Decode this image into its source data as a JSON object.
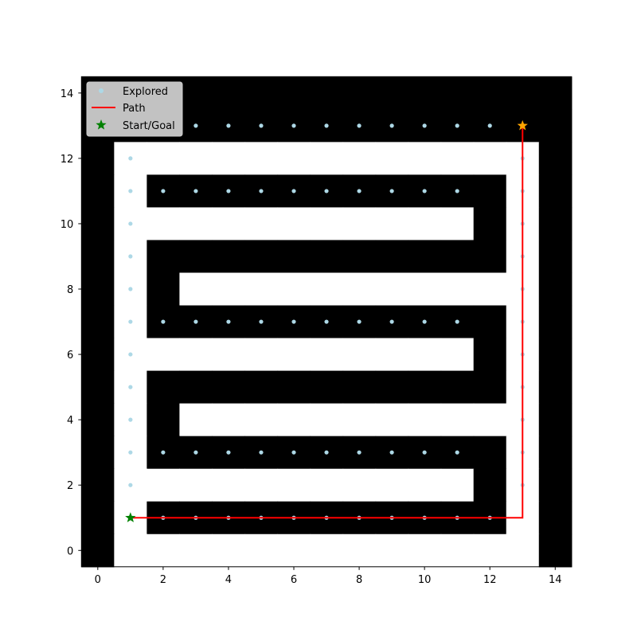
{
  "chart_data": {
    "type": "scatter",
    "title": "",
    "xlabel": "",
    "ylabel": "",
    "xlim": [
      -0.5,
      14.5
    ],
    "ylim": [
      -0.5,
      14.5
    ],
    "x_ticks": [
      0,
      2,
      4,
      6,
      8,
      10,
      12,
      14
    ],
    "y_ticks": [
      0,
      2,
      4,
      6,
      8,
      10,
      12,
      14
    ],
    "grid": false,
    "legend_position": "top-left",
    "legend": {
      "explored_label": "Explored",
      "path_label": "Path",
      "startgoal_label": "Start/Goal"
    },
    "colors": {
      "wall": "#000000",
      "free": "#ffffff",
      "explored": "#add8e6",
      "path": "#ff0000",
      "start": "#008000",
      "goal": "#ffa500"
    },
    "maze_rows_top_to_bottom": [
      "###############",
      "###############",
      "#.............#",
      "#.###########.#",
      "#...........#.#",
      "#.###########.#",
      "#.#...........#",
      "#.###########.#",
      "#...........#.#",
      "#.###########.#",
      "#.#...........#",
      "#.###########.#",
      "#...........#.#",
      "#.###########.#",
      "#.............#"
    ],
    "explored": [
      [
        1,
        1
      ],
      [
        2,
        1
      ],
      [
        3,
        1
      ],
      [
        4,
        1
      ],
      [
        5,
        1
      ],
      [
        6,
        1
      ],
      [
        7,
        1
      ],
      [
        8,
        1
      ],
      [
        9,
        1
      ],
      [
        10,
        1
      ],
      [
        11,
        1
      ],
      [
        12,
        1
      ],
      [
        1,
        2
      ],
      [
        1,
        3
      ],
      [
        2,
        3
      ],
      [
        3,
        3
      ],
      [
        4,
        3
      ],
      [
        5,
        3
      ],
      [
        6,
        3
      ],
      [
        7,
        3
      ],
      [
        8,
        3
      ],
      [
        9,
        3
      ],
      [
        10,
        3
      ],
      [
        11,
        3
      ],
      [
        1,
        4
      ],
      [
        1,
        5
      ],
      [
        1,
        6
      ],
      [
        1,
        7
      ],
      [
        2,
        7
      ],
      [
        3,
        7
      ],
      [
        4,
        7
      ],
      [
        5,
        7
      ],
      [
        6,
        7
      ],
      [
        7,
        7
      ],
      [
        8,
        7
      ],
      [
        9,
        7
      ],
      [
        10,
        7
      ],
      [
        11,
        7
      ],
      [
        1,
        8
      ],
      [
        1,
        9
      ],
      [
        1,
        10
      ],
      [
        1,
        11
      ],
      [
        2,
        11
      ],
      [
        3,
        11
      ],
      [
        4,
        11
      ],
      [
        5,
        11
      ],
      [
        6,
        11
      ],
      [
        7,
        11
      ],
      [
        8,
        11
      ],
      [
        9,
        11
      ],
      [
        10,
        11
      ],
      [
        11,
        11
      ],
      [
        1,
        12
      ],
      [
        1,
        13
      ],
      [
        2,
        13
      ],
      [
        3,
        13
      ],
      [
        4,
        13
      ],
      [
        5,
        13
      ],
      [
        6,
        13
      ],
      [
        7,
        13
      ],
      [
        8,
        13
      ],
      [
        9,
        13
      ],
      [
        10,
        13
      ],
      [
        11,
        13
      ],
      [
        12,
        13
      ],
      [
        13,
        2
      ],
      [
        13,
        3
      ],
      [
        13,
        4
      ],
      [
        13,
        5
      ],
      [
        13,
        6
      ],
      [
        13,
        7
      ],
      [
        13,
        8
      ],
      [
        13,
        9
      ],
      [
        13,
        10
      ],
      [
        13,
        11
      ],
      [
        13,
        12
      ]
    ],
    "path": [
      [
        1,
        1
      ],
      [
        13,
        1
      ],
      [
        13,
        13
      ]
    ],
    "start": [
      1,
      1
    ],
    "goal": [
      13,
      13
    ]
  }
}
